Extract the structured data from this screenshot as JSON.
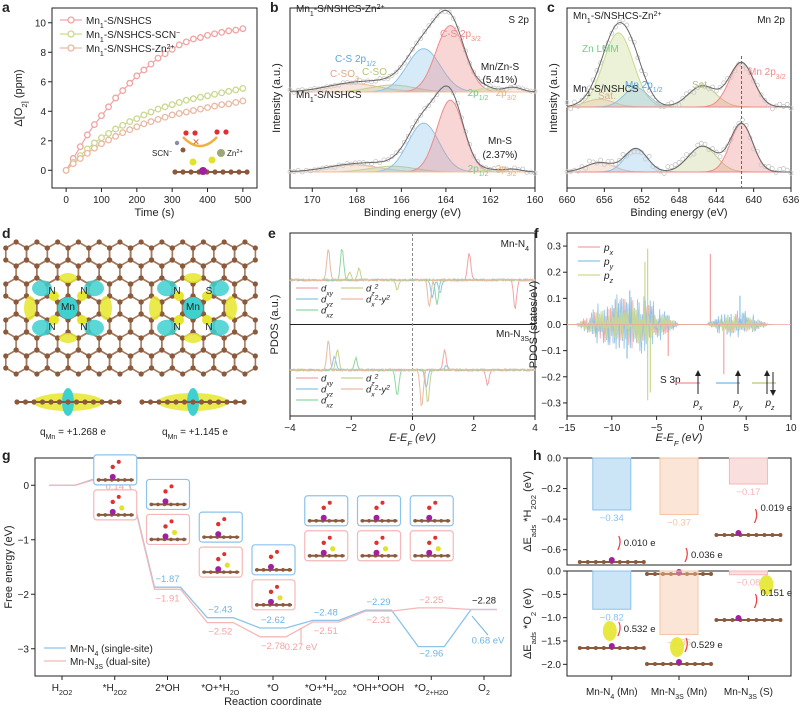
{
  "figure": {
    "panels": [
      "a",
      "b",
      "c",
      "d",
      "e",
      "f",
      "g",
      "h"
    ]
  },
  "colors": {
    "pink": "#f2a3a3",
    "green": "#c9d98f",
    "peach": "#e9b9a3",
    "blue": "#8cc3ea",
    "red": "#ef8a8a",
    "olive": "#c6cf8e",
    "orange": "#f5c5a4",
    "lightred": "#f5b7b7",
    "cyan": "#3fd0d0",
    "yellow": "#e6e62e",
    "carbon": "#8b5a3c",
    "mn": "#a020a0",
    "s": "#e2e22a",
    "o": "#e03030"
  },
  "chart_data": [
    {
      "panel": "a",
      "type": "line",
      "xlabel": "Time (s)",
      "ylabel": "Δ[O2] (ppm)",
      "xlim": [
        -40,
        540
      ],
      "ylim": [
        -1.2,
        11
      ],
      "xticks": [
        0,
        100,
        200,
        300,
        400,
        500
      ],
      "yticks": [
        0,
        2,
        4,
        6,
        8,
        10
      ],
      "x": [
        0,
        20,
        40,
        60,
        80,
        100,
        120,
        140,
        160,
        180,
        200,
        220,
        240,
        260,
        280,
        300,
        320,
        340,
        360,
        380,
        400,
        420,
        440,
        460,
        480,
        500
      ],
      "series": [
        {
          "name": "Mn1-S/NSHCS",
          "color": "pink",
          "values": [
            0,
            0.8,
            1.6,
            2.4,
            3.1,
            3.7,
            4.3,
            4.9,
            5.4,
            5.9,
            6.4,
            6.8,
            7.2,
            7.6,
            7.9,
            8.2,
            8.5,
            8.7,
            8.9,
            9.0,
            9.15,
            9.25,
            9.35,
            9.45,
            9.5,
            9.6
          ]
        },
        {
          "name": "Mn1-S/NSHCS-SCN⁻",
          "color": "green",
          "values": [
            0,
            0.55,
            1.0,
            1.45,
            1.85,
            2.2,
            2.5,
            2.8,
            3.05,
            3.3,
            3.5,
            3.75,
            3.95,
            4.15,
            4.3,
            4.45,
            4.6,
            4.75,
            4.85,
            4.95,
            5.05,
            5.15,
            5.25,
            5.35,
            5.45,
            5.55
          ]
        },
        {
          "name": "Mn1-S/NSHCS-Zn2+",
          "color": "peach",
          "values": [
            0,
            0.45,
            0.8,
            1.15,
            1.5,
            1.8,
            2.05,
            2.3,
            2.55,
            2.75,
            2.95,
            3.15,
            3.3,
            3.45,
            3.6,
            3.75,
            3.85,
            3.95,
            4.05,
            4.15,
            4.25,
            4.35,
            4.45,
            4.5,
            4.6,
            4.7
          ]
        }
      ],
      "inset_labels": [
        "SCN⁻",
        "Zn2+"
      ]
    },
    {
      "panel": "b",
      "type": "area",
      "title": "S 2p",
      "xlabel": "Binding energy (eV)",
      "ylabel": "Intensity (a.u.)",
      "xlim": [
        171,
        160
      ],
      "xticks": [
        170,
        168,
        166,
        164,
        162,
        160
      ],
      "samples": [
        {
          "name": "Mn1-S/NSHCS-Zn2+",
          "annotations": [
            "C-SO3",
            "C-SO2",
            "C-S 2p1/2",
            "C-S 2p3/2",
            "Mn/Zn-S",
            "(5.41%)",
            "2p1/2",
            "2p3/2"
          ],
          "peaks": [
            {
              "label": "C-SO3",
              "center": 168.2,
              "height": 0.12,
              "width": 1.2,
              "color": "peach"
            },
            {
              "label": "C-SO2",
              "center": 166.4,
              "height": 0.1,
              "width": 1.0,
              "color": "olive"
            },
            {
              "label": "C-S 2p1/2",
              "center": 165.0,
              "height": 0.62,
              "width": 0.75,
              "color": "blue"
            },
            {
              "label": "C-S 2p3/2",
              "center": 163.8,
              "height": 0.95,
              "width": 0.65,
              "color": "red"
            },
            {
              "label": "Mn/Zn-S 2p1/2",
              "center": 162.2,
              "height": 0.05,
              "width": 0.4,
              "color": "green"
            },
            {
              "label": "Mn/Zn-S 2p3/2",
              "center": 161.0,
              "height": 0.07,
              "width": 0.4,
              "color": "orange"
            }
          ]
        },
        {
          "name": "Mn1-S/NSHCS",
          "annotations": [
            "Mn-S",
            "(2.37%)",
            "2p1/2",
            "2p3/2"
          ],
          "peaks": [
            {
              "label": "C-SO3",
              "center": 168.2,
              "height": 0.1,
              "width": 1.2,
              "color": "peach"
            },
            {
              "label": "C-SO2",
              "center": 166.4,
              "height": 0.08,
              "width": 1.0,
              "color": "olive"
            },
            {
              "label": "C-S 2p1/2",
              "center": 165.0,
              "height": 0.68,
              "width": 0.7,
              "color": "blue"
            },
            {
              "label": "C-S 2p3/2",
              "center": 163.8,
              "height": 1.0,
              "width": 0.6,
              "color": "red"
            },
            {
              "label": "Mn-S 2p1/2",
              "center": 162.0,
              "height": 0.03,
              "width": 0.4,
              "color": "green"
            },
            {
              "label": "Mn-S 2p3/2",
              "center": 161.0,
              "height": 0.04,
              "width": 0.4,
              "color": "orange"
            }
          ]
        }
      ]
    },
    {
      "panel": "c",
      "type": "area",
      "title": "Mn 2p",
      "xlabel": "Binding energy (eV)",
      "ylabel": "Intensity (a.u.)",
      "xlim": [
        660,
        636
      ],
      "xticks": [
        660,
        656,
        652,
        648,
        644,
        640,
        636
      ],
      "reference_line": 641.3,
      "samples": [
        {
          "name": "Mn1-S/NSHCS-Zn2+",
          "annotations": [
            "Zn LMM",
            "Mn 2p1/2",
            "Sat.",
            "Sat.",
            "Mn 2p3/2"
          ],
          "peaks": [
            {
              "label": "Sat.",
              "center": 656.5,
              "height": 0.1,
              "width": 1.5,
              "color": "peach"
            },
            {
              "label": "Zn LMM",
              "center": 654.5,
              "height": 0.95,
              "width": 1.6,
              "color": "green"
            },
            {
              "label": "Mn 2p1/2",
              "center": 652.6,
              "height": 0.25,
              "width": 1.3,
              "color": "blue"
            },
            {
              "label": "Sat.",
              "center": 645.5,
              "height": 0.27,
              "width": 1.5,
              "color": "olive"
            },
            {
              "label": "Mn 2p3/2",
              "center": 641.3,
              "height": 0.57,
              "width": 1.3,
              "color": "red"
            }
          ]
        },
        {
          "name": "Mn1-S/NSHCS",
          "annotations": [],
          "peaks": [
            {
              "label": "Sat.",
              "center": 656.5,
              "height": 0.12,
              "width": 1.5,
              "color": "peach"
            },
            {
              "label": "Mn 2p1/2",
              "center": 652.6,
              "height": 0.3,
              "width": 1.2,
              "color": "blue"
            },
            {
              "label": "Sat.",
              "center": 645.5,
              "height": 0.33,
              "width": 1.5,
              "color": "olive"
            },
            {
              "label": "Mn 2p3/2",
              "center": 641.3,
              "height": 0.62,
              "width": 1.2,
              "color": "red"
            }
          ]
        }
      ]
    },
    {
      "panel": "e",
      "type": "line",
      "xlabel": "E-EF (eV)",
      "ylabel": "PDOS (a.u.)",
      "xlim": [
        -4,
        4
      ],
      "xticks": [
        -4,
        -2,
        0,
        2,
        4
      ],
      "fermi_line": 0,
      "subpanels": [
        {
          "name": "Mn-N4",
          "legend": [
            "dxy",
            "dz²",
            "dyz",
            "dx²-y²",
            "dxz"
          ],
          "spikes": [
            {
              "orbital": "dx²-y²",
              "x": -2.75,
              "y": 1.0
            },
            {
              "orbital": "dxz",
              "x": -2.3,
              "y": 1.0
            },
            {
              "orbital": "dz²",
              "x": -2.05,
              "y": 0.25
            },
            {
              "orbital": "dz²",
              "x": -1.75,
              "y": 0.35
            },
            {
              "orbital": "dz²",
              "x": -0.5,
              "y": -0.3
            },
            {
              "orbital": "dx²-y²",
              "x": 0.55,
              "y": -0.85
            },
            {
              "orbital": "dyz",
              "x": 0.65,
              "y": -0.55
            },
            {
              "orbital": "dxz",
              "x": 0.8,
              "y": -0.8
            },
            {
              "orbital": "dyz",
              "x": 0.9,
              "y": -0.4
            },
            {
              "orbital": "dxy",
              "x": 1.85,
              "y": 0.85
            },
            {
              "orbital": "dxy",
              "x": 3.35,
              "y": -0.9
            }
          ]
        },
        {
          "name": "Mn-N3S",
          "legend": [
            "dxy",
            "dz²",
            "dyz",
            "dx²-y²",
            "dxz"
          ],
          "spikes": [
            {
              "orbital": "dx²-y²",
              "x": -2.75,
              "y": 1.0
            },
            {
              "orbital": "dz²",
              "x": -2.45,
              "y": 0.7
            },
            {
              "orbital": "dyz",
              "x": -2.55,
              "y": 0.45
            },
            {
              "orbital": "dxz",
              "x": -1.85,
              "y": 0.4
            },
            {
              "orbital": "dxz",
              "x": -0.5,
              "y": -0.9
            },
            {
              "orbital": "dx²-y²",
              "x": 0.3,
              "y": -1.25
            },
            {
              "orbital": "dz²",
              "x": 0.5,
              "y": -1.1
            },
            {
              "orbital": "dyz",
              "x": 0.45,
              "y": -0.6
            },
            {
              "orbital": "dxy",
              "x": 1.05,
              "y": 0.7
            },
            {
              "orbital": "dyz",
              "x": 1.1,
              "y": 0.15
            },
            {
              "orbital": "dxy",
              "x": 2.45,
              "y": -0.5
            }
          ]
        }
      ]
    },
    {
      "panel": "f",
      "type": "line",
      "xlabel": "E-EF (eV)",
      "ylabel": "PDOS (states/eV)",
      "xlim": [
        -15,
        10
      ],
      "ylim": [
        -0.35,
        0.35
      ],
      "xticks": [
        -15,
        -10,
        -5,
        0,
        5,
        10
      ],
      "yticks": [
        -0.3,
        -0.2,
        -0.1,
        0.0,
        0.1,
        0.2,
        0.3
      ],
      "ytick_labels": [
        "−0.3",
        "−0.2",
        "−0.1",
        "0.0",
        "0.1",
        "0.2",
        "0.3"
      ],
      "legend": [
        "px",
        "py",
        "pz"
      ],
      "inset_label": "S 3p",
      "inset_orbitals": [
        "px",
        "py",
        "pz"
      ],
      "series": [
        {
          "name": "px",
          "color": "pink",
          "envelope_peak": 0.1,
          "spikes": [
            [
              1.0,
              0.27
            ],
            [
              2.5,
              -0.19
            ],
            [
              -3.7,
              -0.12
            ]
          ]
        },
        {
          "name": "py",
          "color": "blue",
          "envelope_peak": 0.13,
          "spikes": [
            [
              -8.0,
              0.13
            ],
            [
              -8.3,
              -0.13
            ],
            [
              4.3,
              0.11
            ]
          ]
        },
        {
          "name": "pz",
          "color": "green",
          "envelope_peak": 0.08,
          "spikes": [
            [
              -6.0,
              0.29
            ],
            [
              -6.3,
              0.24
            ],
            [
              -6.0,
              -0.29
            ],
            [
              -5.7,
              -0.26
            ]
          ]
        }
      ]
    },
    {
      "panel": "g",
      "type": "line",
      "xlabel": "Reaction coordinate",
      "ylabel": "Free energy (eV)",
      "ylim": [
        -3.5,
        0.5
      ],
      "yticks": [
        0,
        -1,
        -2,
        -3
      ],
      "ytick_labels": [
        "0",
        "−1",
        "−2",
        "−3"
      ],
      "categories": [
        "H2O2",
        "*H2O2",
        "2*OH",
        "*O+*H2O",
        "*O",
        "*O+*H2O2",
        "*OH+*OOH",
        "*O2+H2O",
        "O2"
      ],
      "series": [
        {
          "name": "Mn-N4 (single-site)",
          "color": "blue",
          "values": [
            0,
            0.16,
            -1.87,
            -2.43,
            -2.62,
            -2.48,
            -2.29,
            -2.96,
            -2.28
          ]
        },
        {
          "name": "Mn-N3S (dual-site)",
          "color": "lightred",
          "values": [
            0,
            0.14,
            -1.91,
            -2.52,
            -2.78,
            -2.51,
            -2.31,
            -2.25,
            -2.28
          ]
        }
      ],
      "value_labels": {
        "blue": [
          "0.16",
          "-1.87",
          "-2.43",
          "-2.62",
          "-2.48",
          "-2.29",
          "-2.96"
        ],
        "red": [
          "0.14",
          "-1.91",
          "-2.52",
          "-2.78",
          "-2.51",
          "-2.31",
          "-2.25"
        ],
        "final": "-2.28"
      },
      "annotations": [
        {
          "text": "0.27 eV",
          "color": "lightred"
        },
        {
          "text": "0.68 eV",
          "color": "blue"
        }
      ]
    },
    {
      "panel": "h",
      "type": "bar",
      "categories": [
        "Mn-N4 (Mn)",
        "Mn-N3S (Mn)",
        "Mn-N3S (S)"
      ],
      "subplots": [
        {
          "ylabel": "ΔEads *H2O2 (eV)",
          "ylim": [
            -0.7,
            0.0
          ],
          "yticks": [
            0.0,
            -0.2,
            -0.4,
            -0.6
          ],
          "ytick_labels": [
            "0.0",
            "−0.2",
            "−0.4",
            "−0.6"
          ],
          "values": [
            -0.34,
            -0.37,
            -0.17
          ],
          "value_labels": [
            "-0.34",
            "-0.37",
            "-0.17"
          ],
          "charge_transfer": [
            "0.010 e",
            "0.036 e",
            "0.019 e"
          ]
        },
        {
          "ylabel": "ΔEads *O2 (eV)",
          "ylim": [
            -2.25,
            0.0
          ],
          "yticks": [
            0.0,
            -0.5,
            -1.0,
            -1.5,
            -2.0
          ],
          "ytick_labels": [
            "0.0",
            "−0.5",
            "−1.0",
            "−1.5",
            "−2.0"
          ],
          "values": [
            -0.82,
            -1.36,
            -0.08
          ],
          "value_labels": [
            "-0.82",
            "-1.36",
            "-0.08"
          ],
          "charge_transfer": [
            "0.532 e",
            "0.529 e",
            "0.151 e"
          ]
        }
      ],
      "bar_colors": [
        "blue",
        "orange",
        "lightred"
      ]
    }
  ],
  "panel_d": {
    "left_atoms": [
      "N",
      "N",
      "Mn",
      "N",
      "N"
    ],
    "right_atoms": [
      "N",
      "S",
      "Mn",
      "N",
      "N"
    ],
    "left_charge": "qMn = +1.268 e",
    "right_charge": "qMn = +1.145 e"
  }
}
